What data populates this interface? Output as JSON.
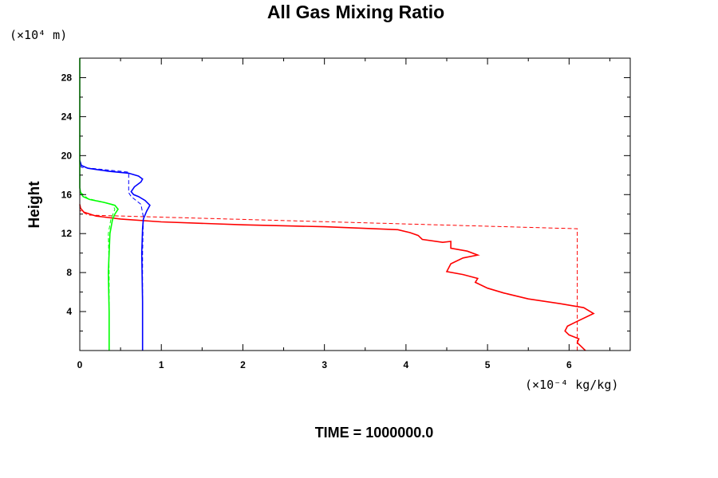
{
  "chart_data": {
    "type": "line",
    "title": "All Gas Mixing Ratio",
    "ylabel": "Height",
    "y_unit_label": "(×10⁴ m)",
    "x_unit_label": "(×10⁻⁴ kg/kg)",
    "footer": "TIME = 1000000.0",
    "xlim": [
      0,
      6.75
    ],
    "ylim": [
      0,
      30
    ],
    "x_ticks": [
      "0",
      "1",
      "2",
      "3",
      "4",
      "5",
      "6"
    ],
    "y_ticks": [
      "4",
      "8",
      "12",
      "16",
      "20",
      "24",
      "28"
    ],
    "grid": false,
    "series": [
      {
        "color": "#ff0000",
        "style": "solid",
        "points": [
          [
            6.2,
            0
          ],
          [
            6.15,
            0.4
          ],
          [
            6.1,
            0.8
          ],
          [
            6.12,
            1.2
          ],
          [
            6.0,
            1.6
          ],
          [
            5.95,
            2.0
          ],
          [
            5.98,
            2.5
          ],
          [
            6.1,
            3.0
          ],
          [
            6.3,
            3.8
          ],
          [
            6.18,
            4.4
          ],
          [
            5.9,
            4.8
          ],
          [
            5.5,
            5.3
          ],
          [
            5.2,
            5.9
          ],
          [
            5.0,
            6.4
          ],
          [
            4.85,
            7.0
          ],
          [
            4.88,
            7.4
          ],
          [
            4.7,
            7.8
          ],
          [
            4.5,
            8.1
          ],
          [
            4.55,
            8.9
          ],
          [
            4.7,
            9.5
          ],
          [
            4.88,
            9.8
          ],
          [
            4.75,
            10.2
          ],
          [
            4.55,
            10.5
          ],
          [
            4.55,
            11.2
          ],
          [
            4.45,
            11.1
          ],
          [
            4.2,
            11.4
          ],
          [
            4.15,
            11.8
          ],
          [
            4.05,
            12.1
          ],
          [
            3.9,
            12.4
          ],
          [
            3.6,
            12.5
          ],
          [
            3.0,
            12.7
          ],
          [
            2.0,
            12.9
          ],
          [
            1.0,
            13.2
          ],
          [
            0.5,
            13.5
          ],
          [
            0.2,
            13.8
          ],
          [
            0.05,
            14.2
          ],
          [
            0.01,
            14.6
          ],
          [
            0,
            15.0
          ]
        ]
      },
      {
        "color": "#ff0000",
        "style": "dashed",
        "points": [
          [
            6.1,
            0
          ],
          [
            6.1,
            12.5
          ],
          [
            0.1,
            13.9
          ],
          [
            0,
            14.4
          ]
        ]
      },
      {
        "color": "#0000ff",
        "style": "solid",
        "points": [
          [
            0.77,
            0
          ],
          [
            0.77,
            5
          ],
          [
            0.76,
            10
          ],
          [
            0.77,
            12.5
          ],
          [
            0.78,
            13.5
          ],
          [
            0.82,
            14.3
          ],
          [
            0.86,
            14.9
          ],
          [
            0.8,
            15.4
          ],
          [
            0.72,
            15.8
          ],
          [
            0.66,
            16.0
          ],
          [
            0.63,
            16.3
          ],
          [
            0.67,
            16.8
          ],
          [
            0.75,
            17.3
          ],
          [
            0.77,
            17.6
          ],
          [
            0.72,
            17.9
          ],
          [
            0.6,
            18.2
          ],
          [
            0.35,
            18.4
          ],
          [
            0.1,
            18.7
          ],
          [
            0.02,
            19.0
          ],
          [
            0,
            19.5
          ]
        ]
      },
      {
        "color": "#0000ff",
        "style": "dashed",
        "points": [
          [
            0.77,
            0
          ],
          [
            0.77,
            10
          ],
          [
            0.78,
            13.7
          ],
          [
            0.75,
            15.0
          ],
          [
            0.63,
            15.8
          ],
          [
            0.6,
            16.2
          ],
          [
            0.6,
            18.3
          ],
          [
            0.02,
            18.8
          ],
          [
            0,
            19.3
          ]
        ]
      },
      {
        "color": "#00ff00",
        "style": "solid",
        "points": [
          [
            0.36,
            0
          ],
          [
            0.36,
            4
          ],
          [
            0.35,
            8
          ],
          [
            0.37,
            12
          ],
          [
            0.4,
            13.4
          ],
          [
            0.43,
            14.0
          ],
          [
            0.47,
            14.5
          ],
          [
            0.43,
            14.9
          ],
          [
            0.3,
            15.2
          ],
          [
            0.12,
            15.5
          ],
          [
            0.04,
            15.8
          ],
          [
            0.01,
            16.2
          ],
          [
            0,
            16.7
          ],
          [
            0,
            30
          ]
        ]
      },
      {
        "color": "#00ff00",
        "style": "dashed",
        "points": [
          [
            0.36,
            0
          ],
          [
            0.36,
            8
          ],
          [
            0.35,
            12
          ],
          [
            0.38,
            13.4
          ],
          [
            0.43,
            14.5
          ],
          [
            0.4,
            15.0
          ],
          [
            0.3,
            15.2
          ],
          [
            0.1,
            15.6
          ],
          [
            0,
            16.3
          ]
        ]
      }
    ]
  }
}
